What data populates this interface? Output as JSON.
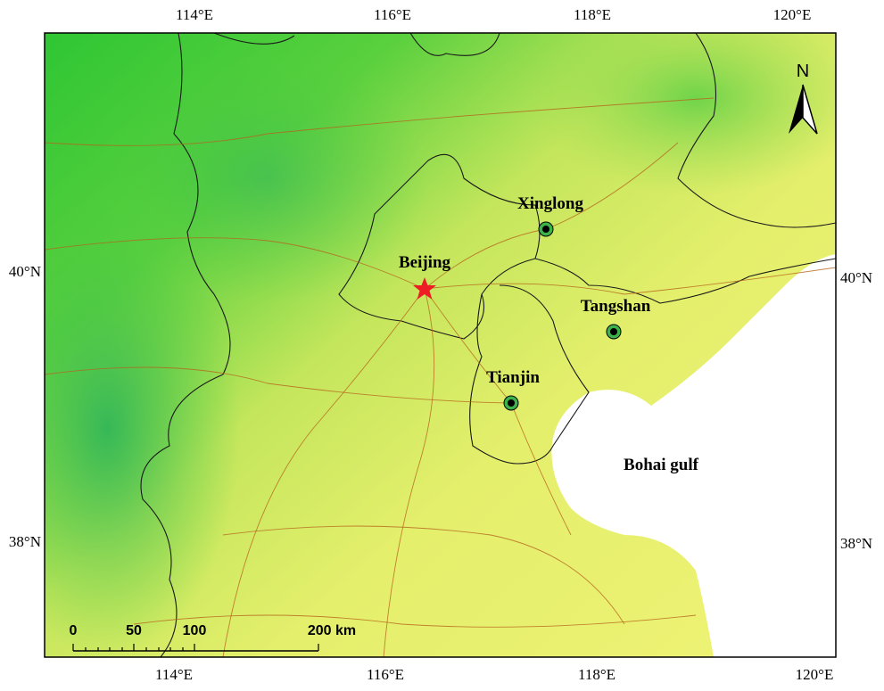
{
  "map": {
    "top_labels": [
      "114°E",
      "116°E",
      "118°E",
      "120°E"
    ],
    "bottom_labels": [
      "114°E",
      "116°E",
      "118°E",
      "120°E"
    ],
    "left_labels": [
      "40°N",
      "38°N"
    ],
    "right_labels": [
      "40°N",
      "38°N"
    ],
    "places": [
      {
        "name": "Beijing"
      },
      {
        "name": "Xinglong"
      },
      {
        "name": "Tangshan"
      },
      {
        "name": "Tianjin"
      }
    ],
    "sea_label": "Bohai gulf",
    "north": "N",
    "scale_labels": [
      "0",
      "50",
      "100",
      "200 km"
    ]
  }
}
